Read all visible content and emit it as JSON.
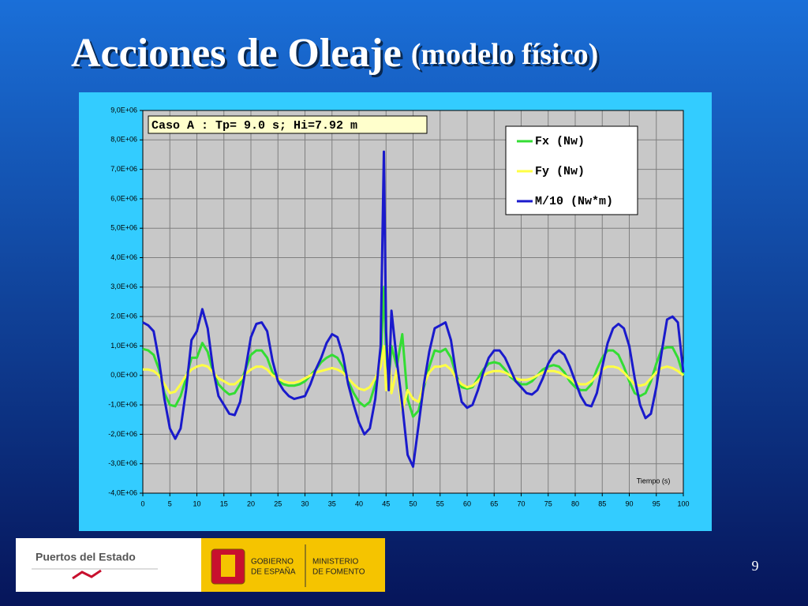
{
  "slide": {
    "title": "Acciones de Oleaje",
    "title_suffix": "(modelo físico)",
    "page_number": "9",
    "footer": {
      "agency": "Puertos del Estado",
      "government": [
        "GOBIERNO",
        "DE ESPAÑA"
      ],
      "ministry": [
        "MINISTERIO",
        "DE FOMENTO"
      ]
    }
  },
  "chart_data": {
    "type": "line",
    "annotation": "Caso A : Tp= 9.0 s; Hi=7.92 m",
    "x_label": "Tiempo (s)",
    "x": [
      0,
      1,
      2,
      3,
      4,
      5,
      6,
      7,
      8,
      9,
      10,
      11,
      12,
      13,
      14,
      15,
      16,
      17,
      18,
      19,
      20,
      21,
      22,
      23,
      24,
      25,
      26,
      27,
      28,
      29,
      30,
      31,
      32,
      33,
      34,
      35,
      36,
      37,
      38,
      39,
      40,
      41,
      42,
      43,
      44,
      44.6,
      45,
      45.5,
      46,
      47,
      48,
      49,
      50,
      51,
      52,
      53,
      54,
      55,
      56,
      57,
      58,
      59,
      60,
      61,
      62,
      63,
      64,
      65,
      66,
      67,
      68,
      69,
      70,
      71,
      72,
      73,
      74,
      75,
      76,
      77,
      78,
      79,
      80,
      81,
      82,
      83,
      84,
      85,
      86,
      87,
      88,
      89,
      90,
      91,
      92,
      93,
      94,
      95,
      96,
      97,
      98,
      99,
      100
    ],
    "series": [
      {
        "name": "Fx (Nw)",
        "color": "#33dd33",
        "values": [
          900000.0,
          850000.0,
          700000.0,
          200000.0,
          -600000.0,
          -1000000.0,
          -1050000.0,
          -700000.0,
          -100000.0,
          600000.0,
          600000.0,
          1100000.0,
          800000.0,
          100000.0,
          -300000.0,
          -500000.0,
          -650000.0,
          -600000.0,
          -300000.0,
          200000.0,
          700000.0,
          850000.0,
          850000.0,
          600000.0,
          100000.0,
          -150000.0,
          -300000.0,
          -350000.0,
          -350000.0,
          -300000.0,
          -200000.0,
          0,
          200000.0,
          450000.0,
          600000.0,
          700000.0,
          600000.0,
          300000.0,
          -200000.0,
          -600000.0,
          -900000.0,
          -1050000.0,
          -900000.0,
          -300000.0,
          500000.0,
          3000000.0,
          800000.0,
          -300000.0,
          1000000.0,
          300000.0,
          1400000.0,
          -800000.0,
          -1400000.0,
          -1200000.0,
          -400000.0,
          300000.0,
          850000.0,
          800000.0,
          900000.0,
          600000.0,
          0,
          -400000.0,
          -450000.0,
          -400000.0,
          -100000.0,
          200000.0,
          400000.0,
          450000.0,
          400000.0,
          200000.0,
          -50000.0,
          -200000.0,
          -300000.0,
          -300000.0,
          -200000.0,
          0,
          200000.0,
          300000.0,
          350000.0,
          300000.0,
          100000.0,
          -200000.0,
          -400000.0,
          -500000.0,
          -500000.0,
          -300000.0,
          200000.0,
          600000.0,
          850000.0,
          850000.0,
          700000.0,
          300000.0,
          -200000.0,
          -600000.0,
          -700000.0,
          -600000.0,
          -200000.0,
          400000.0,
          900000.0,
          950000.0,
          950000.0,
          600000.0,
          0
        ]
      },
      {
        "name": "Fy (Nw)",
        "color": "#ffff44",
        "values": [
          200000.0,
          200000.0,
          150000.0,
          0,
          -300000.0,
          -600000.0,
          -550000.0,
          -300000.0,
          0,
          200000.0,
          300000.0,
          350000.0,
          300000.0,
          100000.0,
          -100000.0,
          -200000.0,
          -300000.0,
          -300000.0,
          -150000.0,
          50000.0,
          200000.0,
          300000.0,
          300000.0,
          200000.0,
          0,
          -100000.0,
          -200000.0,
          -250000.0,
          -250000.0,
          -200000.0,
          -100000.0,
          0,
          100000.0,
          150000.0,
          200000.0,
          250000.0,
          200000.0,
          100000.0,
          -100000.0,
          -300000.0,
          -450000.0,
          -500000.0,
          -400000.0,
          -100000.0,
          300000.0,
          1000000.0,
          -500000.0,
          800000.0,
          -600000.0,
          200000.0,
          -1200000.0,
          -500000.0,
          -800000.0,
          -900000.0,
          -300000.0,
          100000.0,
          300000.0,
          300000.0,
          350000.0,
          200000.0,
          -100000.0,
          -300000.0,
          -400000.0,
          -350000.0,
          -200000.0,
          0,
          100000.0,
          150000.0,
          150000.0,
          100000.0,
          0,
          -100000.0,
          -150000.0,
          -150000.0,
          -100000.0,
          0,
          100000.0,
          150000.0,
          150000.0,
          100000.0,
          0,
          -100000.0,
          -250000.0,
          -300000.0,
          -300000.0,
          -200000.0,
          0,
          200000.0,
          300000.0,
          300000.0,
          250000.0,
          100000.0,
          -100000.0,
          -300000.0,
          -350000.0,
          -300000.0,
          -100000.0,
          100000.0,
          250000.0,
          300000.0,
          250000.0,
          150000.0,
          0
        ]
      },
      {
        "name": "M/10 (Nw*m)",
        "color": "#1a1acc",
        "values": [
          1800000.0,
          1700000.0,
          1500000.0,
          500000.0,
          -800000.0,
          -1800000.0,
          -2150000.0,
          -1800000.0,
          -500000.0,
          1200000.0,
          1500000.0,
          2250000.0,
          1600000.0,
          200000.0,
          -700000.0,
          -1000000.0,
          -1300000.0,
          -1350000.0,
          -900000.0,
          200000.0,
          1300000.0,
          1750000.0,
          1800000.0,
          1500000.0,
          500000.0,
          -200000.0,
          -500000.0,
          -700000.0,
          -800000.0,
          -750000.0,
          -700000.0,
          -300000.0,
          200000.0,
          600000.0,
          1100000.0,
          1400000.0,
          1300000.0,
          700000.0,
          -300000.0,
          -1000000.0,
          -1600000.0,
          -2000000.0,
          -1800000.0,
          -800000.0,
          1000000.0,
          7600000.0,
          1500000.0,
          -500000.0,
          2200000.0,
          500000.0,
          -1000000.0,
          -2700000.0,
          -3100000.0,
          -1700000.0,
          -300000.0,
          800000.0,
          1600000.0,
          1700000.0,
          1800000.0,
          1200000.0,
          0,
          -900000.0,
          -1100000.0,
          -1000000.0,
          -500000.0,
          100000.0,
          600000.0,
          850000.0,
          850000.0,
          600000.0,
          200000.0,
          -200000.0,
          -400000.0,
          -600000.0,
          -650000.0,
          -500000.0,
          -100000.0,
          400000.0,
          700000.0,
          850000.0,
          700000.0,
          300000.0,
          -200000.0,
          -700000.0,
          -1000000.0,
          -1050000.0,
          -600000.0,
          300000.0,
          1100000.0,
          1600000.0,
          1750000.0,
          1600000.0,
          1000000.0,
          -100000.0,
          -1000000.0,
          -1450000.0,
          -1300000.0,
          -400000.0,
          800000.0,
          1900000.0,
          2000000.0,
          1800000.0,
          100000.0
        ]
      }
    ],
    "xlim": [
      0,
      100
    ],
    "xticks": [
      0,
      5,
      10,
      15,
      20,
      25,
      30,
      35,
      40,
      45,
      50,
      55,
      60,
      65,
      70,
      75,
      80,
      85,
      90,
      95,
      100
    ],
    "ylim": [
      -4000000,
      9000000
    ],
    "yticks": [
      {
        "value": 9000000,
        "label": "9,0E+06"
      },
      {
        "value": 8000000,
        "label": "8,0E+06"
      },
      {
        "value": 7000000,
        "label": "7,0E+06"
      },
      {
        "value": 6000000,
        "label": "6,0E+06"
      },
      {
        "value": 5000000,
        "label": "5,0E+06"
      },
      {
        "value": 4000000,
        "label": "4,0E+06"
      },
      {
        "value": 3000000,
        "label": "3,0E+06"
      },
      {
        "value": 2000000,
        "label": "2.0E+06"
      },
      {
        "value": 1000000,
        "label": "1,0E+06"
      },
      {
        "value": 0,
        "label": "0,0E+00"
      },
      {
        "value": -1000000,
        "label": "-1,0E+06"
      },
      {
        "value": -2000000,
        "label": "-2,0E+06"
      },
      {
        "value": -3000000,
        "label": "-3,0E+06"
      },
      {
        "value": -4000000,
        "label": "-4,0E+06"
      }
    ],
    "grid": true,
    "legend": "top-right",
    "plot_background": "#c8c8c8",
    "panel_background": "#33ccff"
  }
}
